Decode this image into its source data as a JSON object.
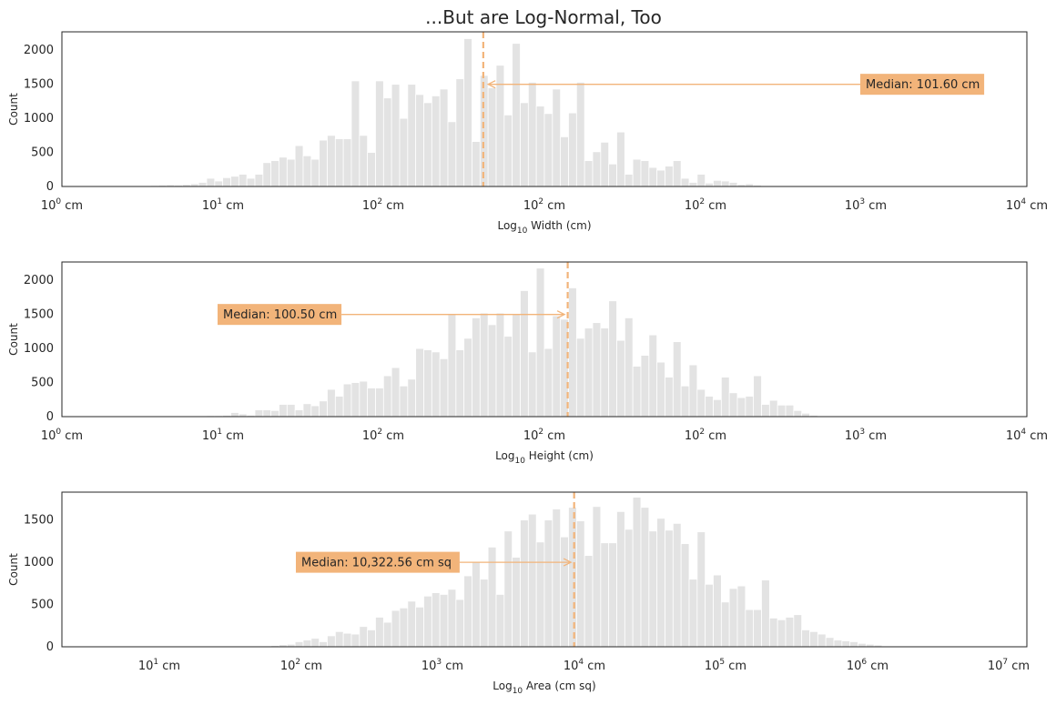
{
  "title": "...But are Log-Normal, Too",
  "colors": {
    "bar": "#e3e3e3",
    "bar_edge": "#ffffff",
    "median": "#f2b47a",
    "annotation_box": "#f2b47a",
    "frame": "#262626"
  },
  "chart_data": [
    {
      "type": "bar",
      "name_key": "width",
      "xlabel_prefix": "Log",
      "xlabel_sub": "10",
      "xlabel_suffix": " Width (cm)",
      "ylabel": "Count",
      "ylim": [
        0,
        2270
      ],
      "yticks": [
        0,
        500,
        1000,
        1500,
        2000
      ],
      "xticks": [
        {
          "base": "10",
          "exp": "0",
          "unit": " cm"
        },
        {
          "base": "10",
          "exp": "1",
          "unit": " cm"
        },
        {
          "base": "10",
          "exp": "2",
          "unit": " cm"
        },
        {
          "base": "10",
          "exp": "2",
          "unit": " cm"
        },
        {
          "base": "10",
          "exp": "2",
          "unit": " cm"
        },
        {
          "base": "10",
          "exp": "3",
          "unit": " cm"
        },
        {
          "base": "10",
          "exp": "4",
          "unit": " cm"
        }
      ],
      "bin_start": 3,
      "values": [
        5,
        5,
        5,
        8,
        10,
        10,
        10,
        12,
        15,
        20,
        25,
        20,
        30,
        40,
        60,
        120,
        80,
        130,
        150,
        180,
        120,
        180,
        350,
        380,
        430,
        400,
        600,
        450,
        400,
        680,
        750,
        700,
        700,
        1550,
        750,
        500,
        1550,
        1300,
        1500,
        1000,
        1500,
        1350,
        1230,
        1330,
        1430,
        950,
        1580,
        2170,
        660,
        1630,
        1450,
        1780,
        1050,
        2100,
        1230,
        1530,
        1180,
        1070,
        1430,
        730,
        1080,
        1530,
        380,
        510,
        650,
        330,
        800,
        180,
        400,
        380,
        280,
        240,
        300,
        380,
        120,
        60,
        180,
        50,
        90,
        80,
        60,
        30,
        40,
        20,
        10,
        10,
        5,
        5,
        5,
        5
      ],
      "median_bin": 52.4,
      "annotation": {
        "text": "Median: 101.60 cm",
        "y": 1500,
        "arrow_to_bin": 53,
        "side": "right"
      }
    },
    {
      "type": "bar",
      "name_key": "height",
      "xlabel_prefix": "Log",
      "xlabel_sub": "10",
      "xlabel_suffix": " Height (cm)",
      "ylabel": "Count",
      "ylim": [
        0,
        2270
      ],
      "yticks": [
        0,
        500,
        1000,
        1500,
        2000
      ],
      "xticks": [
        {
          "base": "10",
          "exp": "0",
          "unit": " cm"
        },
        {
          "base": "10",
          "exp": "1",
          "unit": " cm"
        },
        {
          "base": "10",
          "exp": "2",
          "unit": " cm"
        },
        {
          "base": "10",
          "exp": "2",
          "unit": " cm"
        },
        {
          "base": "10",
          "exp": "2",
          "unit": " cm"
        },
        {
          "base": "10",
          "exp": "3",
          "unit": " cm"
        },
        {
          "base": "10",
          "exp": "4",
          "unit": " cm"
        }
      ],
      "bin_start": 10,
      "values": [
        5,
        5,
        5,
        8,
        8,
        10,
        10,
        10,
        15,
        15,
        20,
        60,
        40,
        20,
        100,
        100,
        90,
        180,
        180,
        100,
        190,
        160,
        230,
        400,
        300,
        480,
        500,
        520,
        420,
        420,
        600,
        720,
        450,
        550,
        1000,
        980,
        950,
        850,
        1500,
        980,
        1150,
        1450,
        1520,
        1350,
        1520,
        1180,
        1500,
        1850,
        950,
        2180,
        1000,
        1480,
        1430,
        1890,
        1150,
        1300,
        1380,
        1300,
        1700,
        1120,
        1450,
        740,
        900,
        1200,
        800,
        580,
        1100,
        450,
        760,
        400,
        300,
        250,
        580,
        350,
        280,
        300,
        600,
        180,
        240,
        170,
        170,
        90,
        50,
        20,
        10,
        5,
        5,
        5
      ],
      "median_bin": 62.9,
      "annotation": {
        "text": "Median: 100.50 cm",
        "y": 1500,
        "arrow_to_bin": 62.5,
        "side": "left"
      }
    },
    {
      "type": "bar",
      "name_key": "area",
      "xlabel_prefix": "Log",
      "xlabel_sub": "10",
      "xlabel_suffix": " Area (cm sq)",
      "ylabel": "Count",
      "ylim": [
        0,
        1830
      ],
      "yticks": [
        0,
        500,
        1000,
        1500
      ],
      "xticks": [
        {
          "base": "10",
          "exp": "1",
          "unit": " cm"
        },
        {
          "base": "10",
          "exp": "2",
          "unit": " cm"
        },
        {
          "base": "10",
          "exp": "3",
          "unit": " cm"
        },
        {
          "base": "10",
          "exp": "4",
          "unit": " cm"
        },
        {
          "base": "10",
          "exp": "5",
          "unit": " cm"
        },
        {
          "base": "10",
          "exp": "6",
          "unit": " cm"
        },
        {
          "base": "10",
          "exp": "7",
          "unit": " cm"
        }
      ],
      "bin_start": 22,
      "values": [
        5,
        5,
        8,
        10,
        15,
        25,
        30,
        60,
        80,
        100,
        60,
        130,
        180,
        160,
        150,
        240,
        200,
        350,
        290,
        430,
        460,
        540,
        470,
        600,
        640,
        620,
        680,
        560,
        840,
        1000,
        800,
        1180,
        620,
        1370,
        1060,
        1500,
        1570,
        1240,
        1500,
        1630,
        1300,
        1650,
        1490,
        1080,
        1660,
        1230,
        1230,
        1600,
        1390,
        1770,
        1650,
        1370,
        1520,
        1380,
        1460,
        1220,
        800,
        1360,
        740,
        850,
        530,
        690,
        720,
        440,
        440,
        790,
        340,
        320,
        350,
        380,
        200,
        180,
        150,
        110,
        80,
        70,
        60,
        40,
        30,
        20,
        10
      ],
      "median_bin": 63.7,
      "annotation": {
        "text": "Median: 10,322.56 cm sq",
        "y": 1000,
        "arrow_to_bin": 63.3,
        "side": "left"
      }
    }
  ]
}
